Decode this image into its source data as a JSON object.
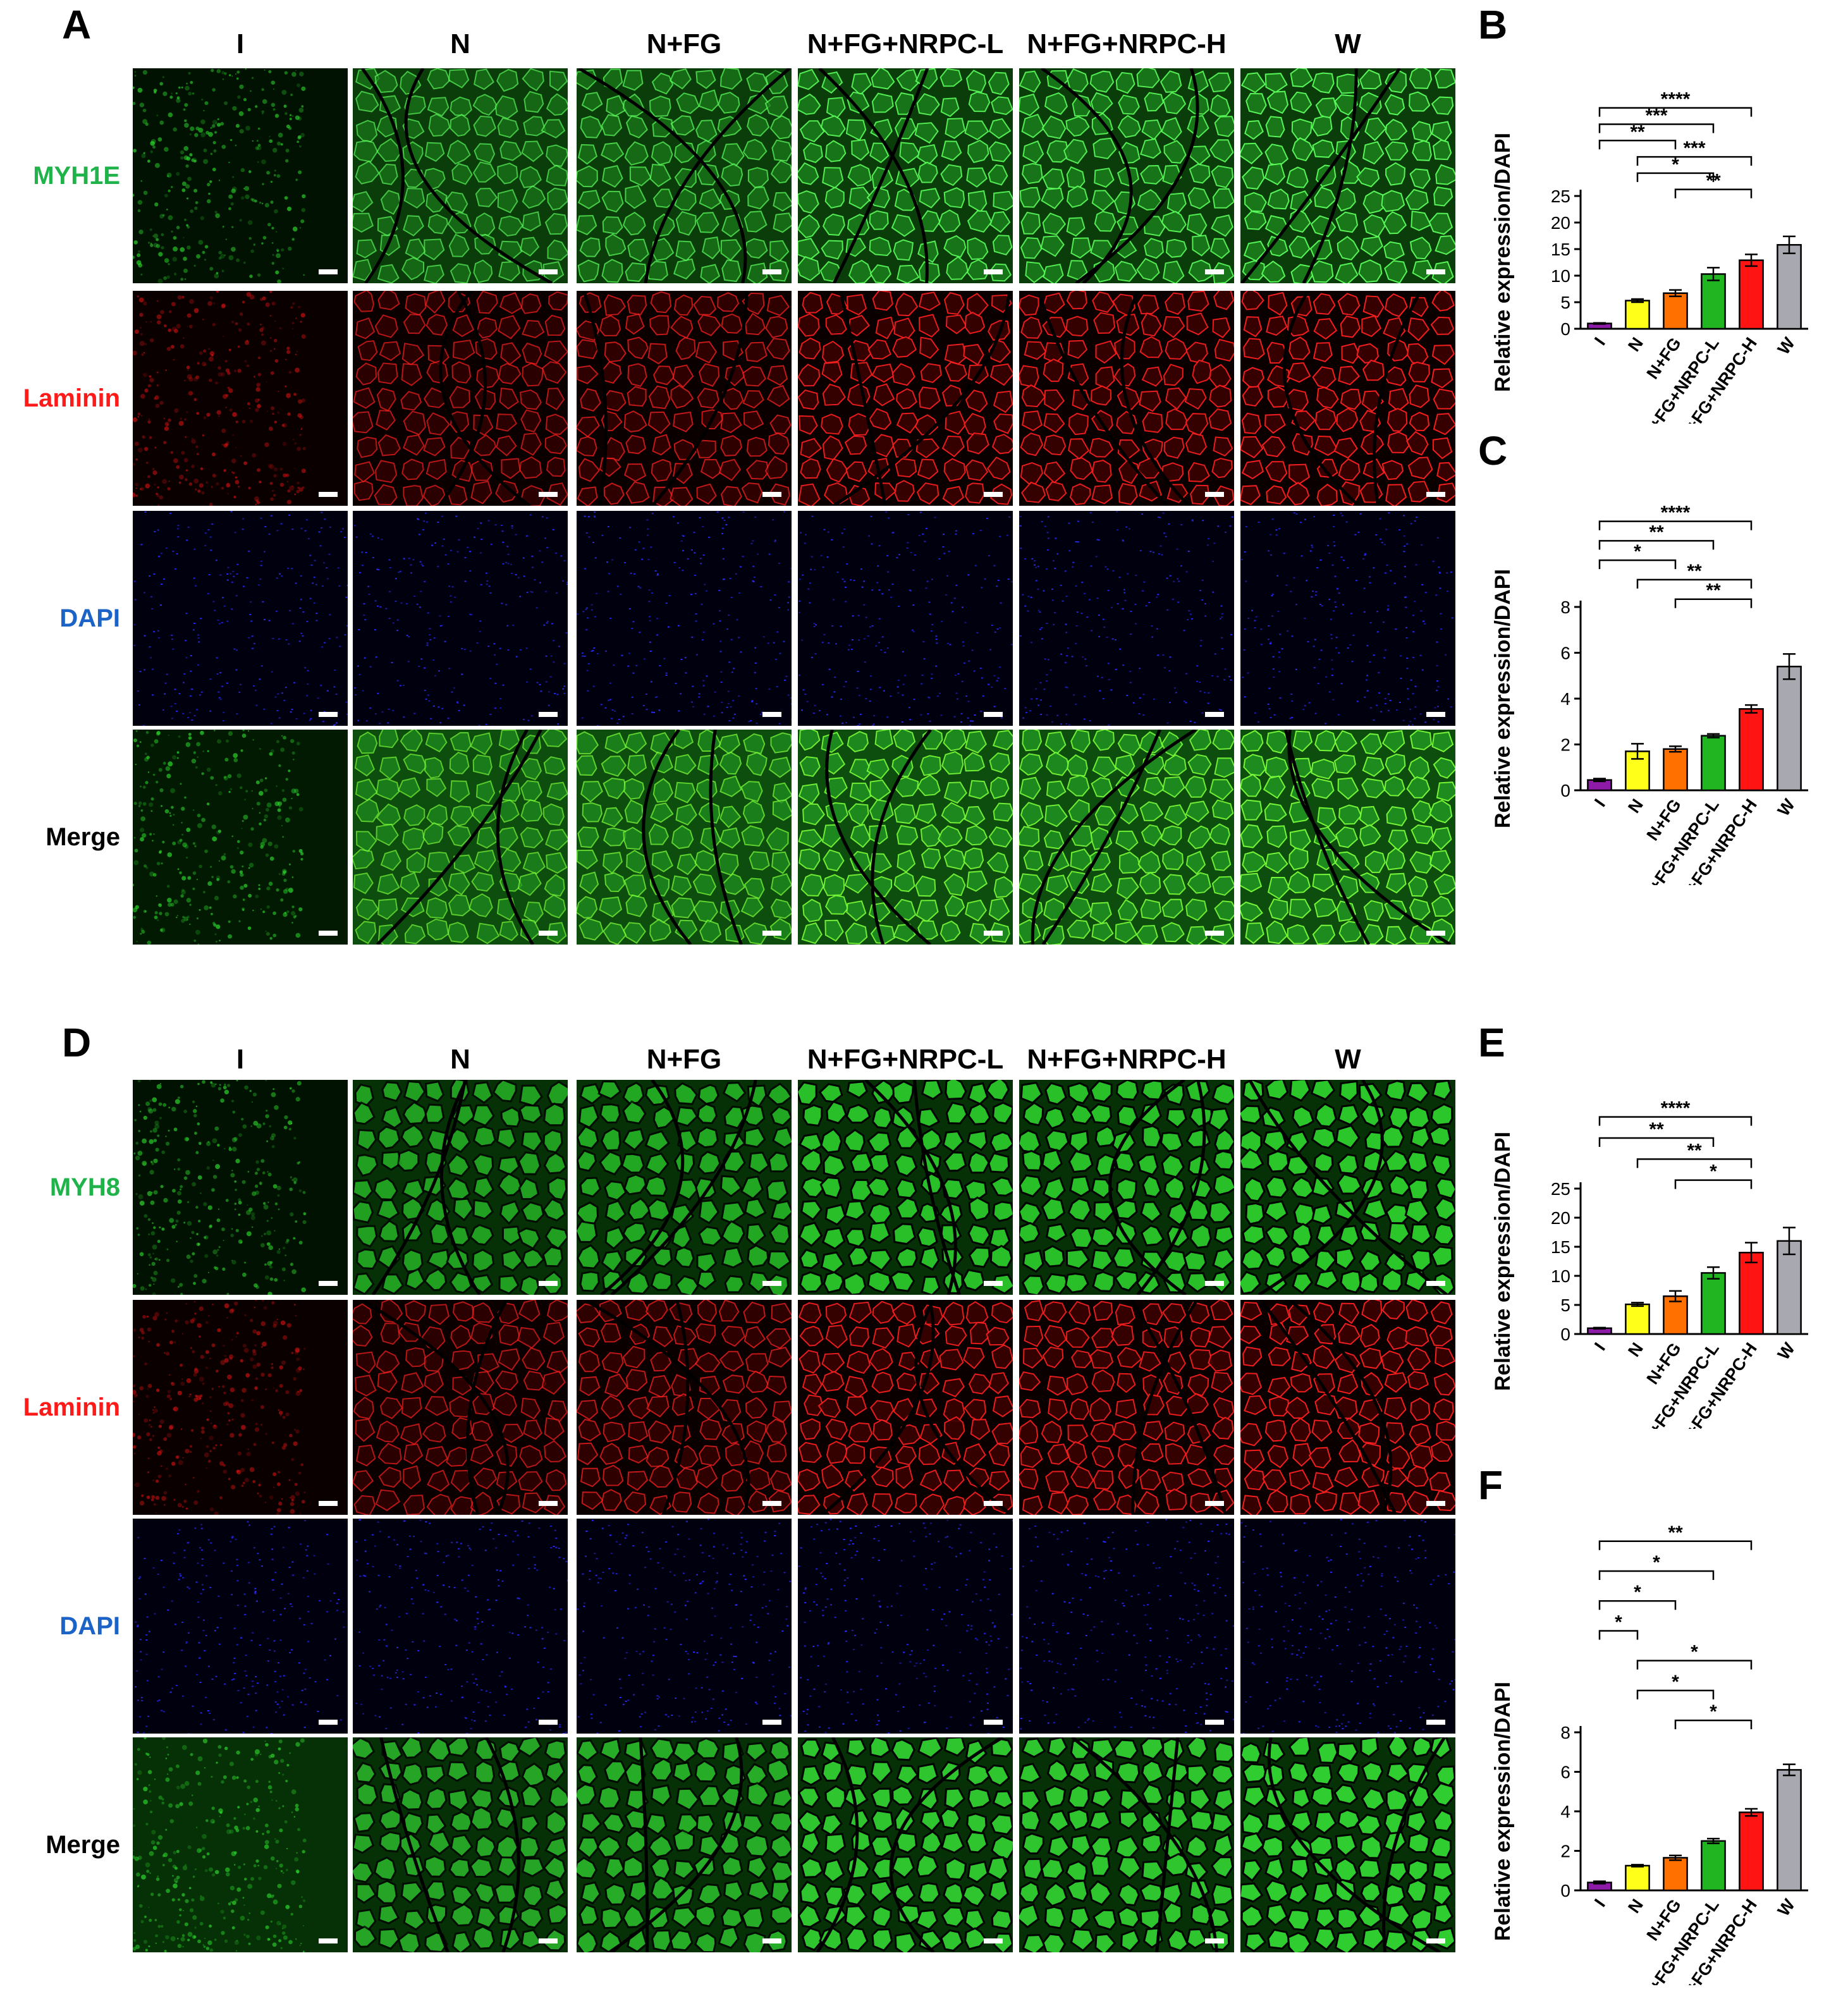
{
  "panels": {
    "A": "A",
    "B": "B",
    "C": "C",
    "D": "D",
    "E": "E",
    "F": "F"
  },
  "columns": [
    "I",
    "N",
    "N+FG",
    "N+FG+NRPC-L",
    "N+FG+NRPC-H",
    "W"
  ],
  "top_rows": [
    {
      "label": "MYH1E",
      "color": "#1fb34a"
    },
    {
      "label": "Laminin",
      "color": "#ff1a1a"
    },
    {
      "label": "DAPI",
      "color": "#1b63c6"
    },
    {
      "label": "Merge",
      "color": "#000000"
    }
  ],
  "bottom_rows": [
    {
      "label": "MYH8",
      "color": "#1fb34a"
    },
    {
      "label": "Laminin",
      "color": "#ff1a1a"
    },
    {
      "label": "DAPI",
      "color": "#1b63c6"
    },
    {
      "label": "Merge",
      "color": "#000000"
    }
  ],
  "bar_colors": [
    "#8e1aa8",
    "#ffff1a",
    "#ff7000",
    "#22b522",
    "#ff1414",
    "#a8a8b0"
  ],
  "chart_data": [
    {
      "id": "B",
      "type": "bar",
      "ylabel": "Relative expression/DAPI",
      "categories": [
        "I",
        "N",
        "N+FG",
        "N+FG+NRPC-L",
        "N+FG+NRPC-H",
        "W"
      ],
      "values": [
        1.0,
        5.3,
        6.7,
        10.3,
        12.9,
        15.8
      ],
      "errors": [
        0.1,
        0.3,
        0.6,
        1.2,
        1.1,
        1.6
      ],
      "ylim": [
        0,
        25
      ],
      "yticks": [
        0,
        5,
        10,
        15,
        20,
        25
      ],
      "significance": [
        {
          "from": 0,
          "to": 4,
          "label": "****"
        },
        {
          "from": 0,
          "to": 3,
          "label": "***"
        },
        {
          "from": 0,
          "to": 2,
          "label": "**"
        },
        {
          "from": 1,
          "to": 4,
          "label": "***"
        },
        {
          "from": 1,
          "to": 3,
          "label": "*"
        },
        {
          "from": 2,
          "to": 4,
          "label": "**"
        }
      ]
    },
    {
      "id": "C",
      "type": "bar",
      "ylabel": "Relative expression/DAPI",
      "categories": [
        "I",
        "N",
        "N+FG",
        "N+FG+NRPC-L",
        "N+FG+NRPC-H",
        "W"
      ],
      "values": [
        0.45,
        1.7,
        1.8,
        2.38,
        3.55,
        5.4
      ],
      "errors": [
        0.06,
        0.33,
        0.12,
        0.08,
        0.17,
        0.55
      ],
      "ylim": [
        0,
        8
      ],
      "yticks": [
        0,
        2,
        4,
        6,
        8
      ],
      "significance": [
        {
          "from": 0,
          "to": 4,
          "label": "****"
        },
        {
          "from": 0,
          "to": 3,
          "label": "**"
        },
        {
          "from": 0,
          "to": 2,
          "label": "*"
        },
        {
          "from": 1,
          "to": 4,
          "label": "**"
        },
        {
          "from": 2,
          "to": 4,
          "label": "**"
        }
      ]
    },
    {
      "id": "E",
      "type": "bar",
      "ylabel": "Relative expression/DAPI",
      "categories": [
        "I",
        "N",
        "N+FG",
        "N+FG+NRPC-L",
        "N+FG+NRPC-H",
        "W"
      ],
      "values": [
        1.0,
        5.1,
        6.5,
        10.5,
        14.0,
        16.0
      ],
      "errors": [
        0.1,
        0.3,
        0.9,
        1.0,
        1.7,
        2.3
      ],
      "ylim": [
        0,
        25
      ],
      "yticks": [
        0,
        5,
        10,
        15,
        20,
        25
      ],
      "significance": [
        {
          "from": 0,
          "to": 4,
          "label": "****"
        },
        {
          "from": 0,
          "to": 3,
          "label": "**"
        },
        {
          "from": 1,
          "to": 4,
          "label": "**"
        },
        {
          "from": 2,
          "to": 4,
          "label": "*"
        }
      ]
    },
    {
      "id": "F",
      "type": "bar",
      "ylabel": "Relative expression/DAPI",
      "categories": [
        "I",
        "N",
        "N+FG",
        "N+FG+NRPC-L",
        "N+FG+NRPC-H",
        "W"
      ],
      "values": [
        0.4,
        1.25,
        1.65,
        2.5,
        3.95,
        6.1
      ],
      "errors": [
        0.06,
        0.05,
        0.12,
        0.12,
        0.18,
        0.28
      ],
      "ylim": [
        0,
        8
      ],
      "yticks": [
        0,
        2,
        4,
        6,
        8
      ],
      "significance": [
        {
          "from": 0,
          "to": 4,
          "label": "**"
        },
        {
          "from": 0,
          "to": 3,
          "label": "*"
        },
        {
          "from": 0,
          "to": 2,
          "label": "*"
        },
        {
          "from": 0,
          "to": 1,
          "label": "*"
        },
        {
          "from": 1,
          "to": 4,
          "label": "*"
        },
        {
          "from": 1,
          "to": 3,
          "label": "*"
        },
        {
          "from": 2,
          "to": 4,
          "label": "*"
        }
      ]
    }
  ]
}
